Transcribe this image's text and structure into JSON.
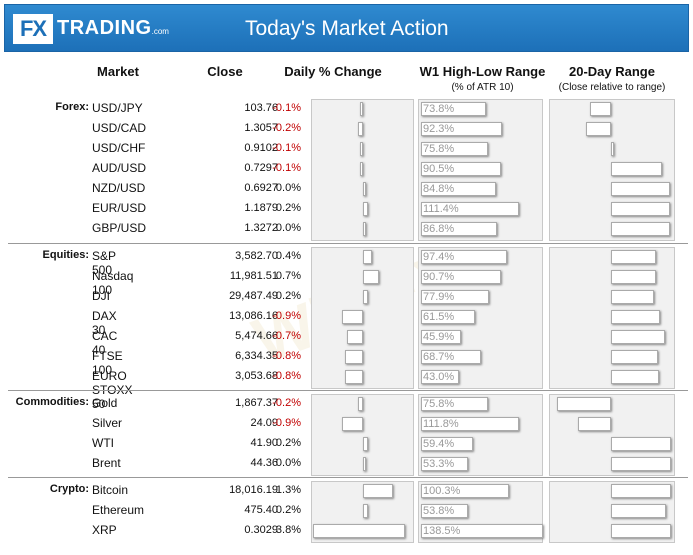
{
  "header": {
    "logo_fx": "FX",
    "logo_trading": "TRADING",
    "logo_com": ".com",
    "title": "Today's Market Action"
  },
  "columns": {
    "market": "Market",
    "close": "Close",
    "daily": "Daily % Change",
    "w1": "W1 High-Low Range",
    "w1_sub": "(% of ATR 10)",
    "range20": "20-Day Range",
    "range20_sub": "(Close relative to range)"
  },
  "watermark": "WikiFX",
  "groups": [
    {
      "label": "Forex:",
      "rows": [
        {
          "name": "USD/JPY",
          "close": "103.76",
          "change": "-0.1%",
          "change_val": -0.1,
          "atr": "73.8%",
          "atr_val": 73.8,
          "range_pos": -0.35
        },
        {
          "name": "USD/CAD",
          "close": "1.3057",
          "change": "-0.2%",
          "change_val": -0.2,
          "atr": "92.3%",
          "atr_val": 92.3,
          "range_pos": -0.42
        },
        {
          "name": "USD/CHF",
          "close": "0.9102",
          "change": "-0.1%",
          "change_val": -0.1,
          "atr": "75.8%",
          "atr_val": 75.8,
          "range_pos": 0.03
        },
        {
          "name": "AUD/USD",
          "close": "0.7297",
          "change": "-0.1%",
          "change_val": -0.1,
          "atr": "90.5%",
          "atr_val": 90.5,
          "range_pos": 0.85
        },
        {
          "name": "NZD/USD",
          "close": "0.6927",
          "change": "0.0%",
          "change_val": 0.03,
          "atr": "84.8%",
          "atr_val": 84.8,
          "range_pos": 0.98
        },
        {
          "name": "EUR/USD",
          "close": "1.1879",
          "change": "0.2%",
          "change_val": 0.2,
          "atr": "111.4%",
          "atr_val": 111.4,
          "range_pos": 0.98
        },
        {
          "name": "GBP/USD",
          "close": "1.3272",
          "change": "0.0%",
          "change_val": 0.01,
          "atr": "86.8%",
          "atr_val": 86.8,
          "range_pos": 0.98
        }
      ]
    },
    {
      "label": "Equities:",
      "rows": [
        {
          "name": "S&P 500",
          "close": "3,582.70",
          "change": "0.4%",
          "change_val": 0.4,
          "atr": "97.4%",
          "atr_val": 97.4,
          "range_pos": 0.75
        },
        {
          "name": "Nasdaq 100",
          "close": "11,981.51",
          "change": "0.7%",
          "change_val": 0.7,
          "atr": "90.7%",
          "atr_val": 90.7,
          "range_pos": 0.75
        },
        {
          "name": "DJI",
          "close": "29,487.49",
          "change": "0.2%",
          "change_val": 0.2,
          "atr": "77.9%",
          "atr_val": 77.9,
          "range_pos": 0.72
        },
        {
          "name": "DAX 30",
          "close": "13,086.16",
          "change": "-0.9%",
          "change_val": -0.9,
          "atr": "61.5%",
          "atr_val": 61.5,
          "range_pos": 0.82
        },
        {
          "name": "CAC 40",
          "close": "5,474.66",
          "change": "-0.7%",
          "change_val": -0.7,
          "atr": "45.9%",
          "atr_val": 45.9,
          "range_pos": 0.9
        },
        {
          "name": "FTSE 100",
          "close": "6,334.35",
          "change": "-0.8%",
          "change_val": -0.8,
          "atr": "68.7%",
          "atr_val": 68.7,
          "range_pos": 0.78
        },
        {
          "name": "EURO STOXX 50",
          "close": "3,053.68",
          "change": "-0.8%",
          "change_val": -0.8,
          "atr": "43.0%",
          "atr_val": 43.0,
          "range_pos": 0.8
        }
      ]
    },
    {
      "label": "Commodities:",
      "rows": [
        {
          "name": "Gold",
          "close": "1,867.37",
          "change": "-0.2%",
          "change_val": -0.2,
          "atr": "75.8%",
          "atr_val": 75.8,
          "range_pos": -0.9
        },
        {
          "name": "Silver",
          "close": "24.09",
          "change": "-0.9%",
          "change_val": -0.9,
          "atr": "111.8%",
          "atr_val": 111.8,
          "range_pos": -0.55
        },
        {
          "name": "WTI",
          "close": "41.90",
          "change": "0.2%",
          "change_val": 0.2,
          "atr": "59.4%",
          "atr_val": 59.4,
          "range_pos": 1.0
        },
        {
          "name": "Brent",
          "close": "44.36",
          "change": "0.0%",
          "change_val": 0.03,
          "atr": "53.3%",
          "atr_val": 53.3,
          "range_pos": 1.0
        }
      ]
    },
    {
      "label": "Crypto:",
      "rows": [
        {
          "name": "Bitcoin",
          "close": "18,016.19",
          "change": "1.3%",
          "change_val": 1.3,
          "atr": "100.3%",
          "atr_val": 100.3,
          "range_pos": 1.0
        },
        {
          "name": "Ethereum",
          "close": "475.40",
          "change": "0.2%",
          "change_val": 0.2,
          "atr": "53.8%",
          "atr_val": 53.8,
          "range_pos": 0.92
        },
        {
          "name": "XRP",
          "close": "0.3029",
          "change": "3.8%",
          "change_val": 3.8,
          "atr": "138.5%",
          "atr_val": 138.5,
          "range_pos": 1.0
        }
      ]
    }
  ]
}
